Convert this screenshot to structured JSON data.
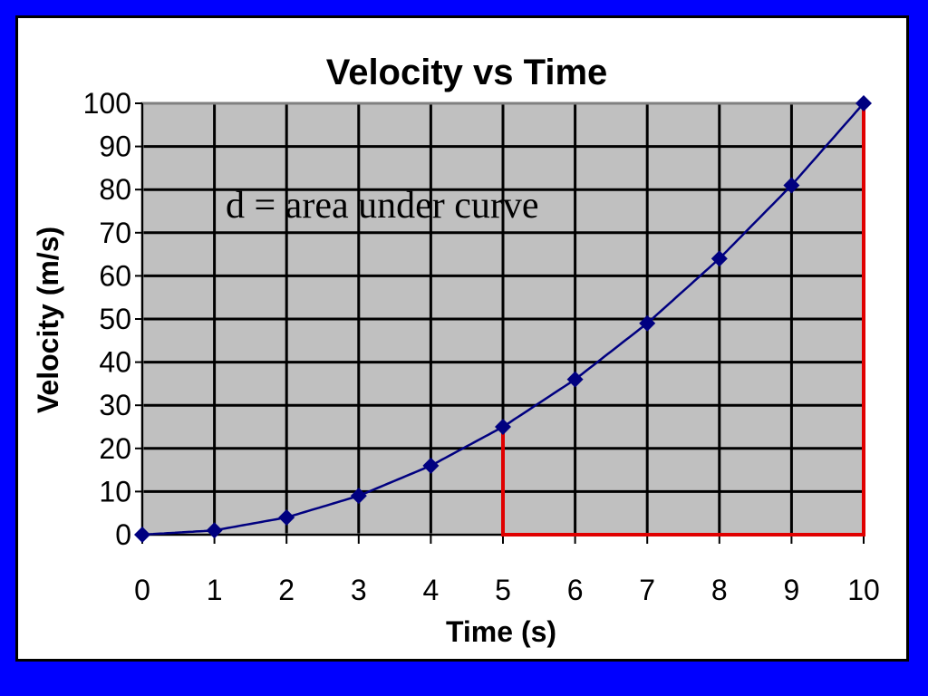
{
  "chart_data": {
    "type": "line",
    "title": "Velocity vs Time",
    "xlabel": "Time (s)",
    "ylabel": "Velocity (m/s)",
    "x": [
      0,
      1,
      2,
      3,
      4,
      5,
      6,
      7,
      8,
      9,
      10
    ],
    "series": [
      {
        "values": [
          0,
          1,
          4,
          9,
          16,
          25,
          36,
          49,
          64,
          81,
          100
        ]
      }
    ],
    "xlim": [
      0,
      10
    ],
    "ylim": [
      0,
      100
    ],
    "x_ticks": [
      "0",
      "1",
      "2",
      "3",
      "4",
      "5",
      "6",
      "7",
      "8",
      "9",
      "10"
    ],
    "y_ticks": [
      "0",
      "10",
      "20",
      "30",
      "40",
      "50",
      "60",
      "70",
      "80",
      "90",
      "100"
    ],
    "grid": true,
    "annotation": "d = area under curve",
    "highlight_region": {
      "x_from": 5,
      "x_to": 10,
      "y_from": 0,
      "y_to_at_start": 25,
      "y_to_at_end": 100
    }
  },
  "colors": {
    "page_border": "#0000ff",
    "plot_background": "#c0c0c0",
    "series_line": "#000080",
    "marker": "#000080",
    "highlight": "#e00000",
    "grid": "#000000"
  }
}
